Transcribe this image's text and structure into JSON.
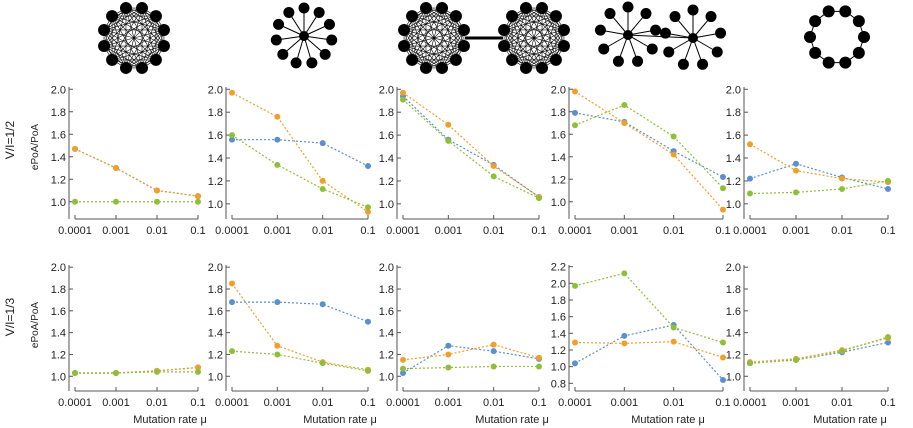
{
  "row_labels": [
    "V/I=1/2",
    "V/I=1/3"
  ],
  "ylabel": "ePoA/PoA",
  "xlabel": "Mutation rate μ",
  "series_colors": {
    "blue": "#5b8fcf",
    "orange": "#f0a02a",
    "green": "#8fbf3a"
  },
  "network_icons": [
    "complete-graph",
    "star-graph",
    "two-connected-complete-graphs",
    "two-connected-stars",
    "cycle-graph"
  ],
  "chart_data": [
    {
      "type": "line",
      "title": "",
      "row": 1,
      "col": 1,
      "categories": [
        "0.0001",
        "0.001",
        "0.01",
        "0.1"
      ],
      "yticks": [
        "1.0",
        "1.2",
        "1.4",
        "1.6",
        "1.8",
        "2.0"
      ],
      "ylim": [
        0.9,
        2.02
      ],
      "grid": false,
      "series": [
        {
          "color": "blue",
          "values": [
            1.47,
            1.3,
            1.1,
            1.05
          ]
        },
        {
          "color": "orange",
          "values": [
            1.47,
            1.3,
            1.1,
            1.05
          ]
        },
        {
          "color": "green",
          "values": [
            1.0,
            1.0,
            1.0,
            1.0
          ]
        }
      ]
    },
    {
      "type": "line",
      "title": "",
      "row": 1,
      "col": 2,
      "categories": [
        "0.0001",
        "0.001",
        "0.01",
        "0.1"
      ],
      "yticks": [
        "1.0",
        "1.2",
        "1.4",
        "1.6",
        "1.8",
        "2.0"
      ],
      "ylim": [
        0.92,
        2.02
      ],
      "grid": false,
      "series": [
        {
          "color": "blue",
          "values": [
            1.56,
            1.56,
            1.53,
            1.33
          ]
        },
        {
          "color": "orange",
          "values": [
            1.97,
            1.76,
            1.2,
            0.93
          ]
        },
        {
          "color": "green",
          "values": [
            1.6,
            1.34,
            1.13,
            0.97
          ]
        }
      ]
    },
    {
      "type": "line",
      "title": "",
      "row": 1,
      "col": 3,
      "categories": [
        "0.0001",
        "0.001",
        "0.01",
        "0.1"
      ],
      "yticks": [
        "1.0",
        "1.2",
        "1.4",
        "1.6",
        "1.8",
        "2.0"
      ],
      "ylim": [
        0.92,
        2.02
      ],
      "grid": false,
      "series": [
        {
          "color": "blue",
          "values": [
            1.94,
            1.56,
            1.34,
            1.06
          ]
        },
        {
          "color": "orange",
          "values": [
            1.97,
            1.69,
            1.33,
            1.06
          ]
        },
        {
          "color": "green",
          "values": [
            1.91,
            1.55,
            1.24,
            1.05
          ]
        }
      ]
    },
    {
      "type": "line",
      "title": "",
      "row": 1,
      "col": 4,
      "categories": [
        "0.0001",
        "0.001",
        "0.01",
        "0.1"
      ],
      "yticks": [
        "1.0",
        "1.2",
        "1.4",
        "1.6",
        "1.8",
        "2.0"
      ],
      "ylim": [
        0.9,
        2.02
      ],
      "grid": false,
      "series": [
        {
          "color": "blue",
          "values": [
            1.79,
            1.71,
            1.45,
            1.22
          ]
        },
        {
          "color": "orange",
          "values": [
            1.98,
            1.7,
            1.42,
            0.93
          ]
        },
        {
          "color": "green",
          "values": [
            1.68,
            1.86,
            1.58,
            1.12
          ]
        }
      ]
    },
    {
      "type": "line",
      "title": "",
      "row": 1,
      "col": 5,
      "categories": [
        "0.0001",
        "0.001",
        "0.01",
        "0.1"
      ],
      "yticks": [
        "1.0",
        "1.2",
        "1.4",
        "1.6",
        "1.8",
        "2.0"
      ],
      "ylim": [
        0.92,
        2.02
      ],
      "grid": false,
      "series": [
        {
          "color": "blue",
          "values": [
            1.22,
            1.35,
            1.23,
            1.13
          ]
        },
        {
          "color": "orange",
          "values": [
            1.52,
            1.29,
            1.22,
            1.19
          ]
        },
        {
          "color": "green",
          "values": [
            1.09,
            1.1,
            1.13,
            1.2
          ]
        }
      ]
    },
    {
      "type": "line",
      "title": "",
      "row": 2,
      "col": 1,
      "categories": [
        "0.0001",
        "0.001",
        "0.01",
        "0.1"
      ],
      "yticks": [
        "1.0",
        "1.2",
        "1.4",
        "1.6",
        "1.8",
        "2.0"
      ],
      "ylim": [
        0.92,
        2.02
      ],
      "grid": false,
      "series": [
        {
          "color": "blue",
          "values": [
            1.03,
            1.03,
            1.05,
            1.08
          ]
        },
        {
          "color": "orange",
          "values": [
            1.03,
            1.03,
            1.05,
            1.08
          ]
        },
        {
          "color": "green",
          "values": [
            1.03,
            1.03,
            1.04,
            1.04
          ]
        }
      ]
    },
    {
      "type": "line",
      "title": "",
      "row": 2,
      "col": 2,
      "categories": [
        "0.0001",
        "0.001",
        "0.01",
        "0.1"
      ],
      "yticks": [
        "1.0",
        "1.2",
        "1.4",
        "1.6",
        "1.8",
        "2.0"
      ],
      "ylim": [
        0.92,
        2.02
      ],
      "grid": false,
      "series": [
        {
          "color": "blue",
          "values": [
            1.68,
            1.68,
            1.66,
            1.5
          ]
        },
        {
          "color": "orange",
          "values": [
            1.85,
            1.28,
            1.13,
            1.06
          ]
        },
        {
          "color": "green",
          "values": [
            1.23,
            1.2,
            1.12,
            1.05
          ]
        }
      ]
    },
    {
      "type": "line",
      "title": "",
      "row": 2,
      "col": 3,
      "categories": [
        "0.0001",
        "0.001",
        "0.01",
        "0.1"
      ],
      "yticks": [
        "1.0",
        "1.2",
        "1.4",
        "1.6",
        "1.8",
        "2.0"
      ],
      "ylim": [
        0.92,
        2.02
      ],
      "grid": false,
      "series": [
        {
          "color": "blue",
          "values": [
            1.03,
            1.28,
            1.23,
            1.16
          ]
        },
        {
          "color": "orange",
          "values": [
            1.15,
            1.2,
            1.29,
            1.17
          ]
        },
        {
          "color": "green",
          "values": [
            1.07,
            1.08,
            1.09,
            1.09
          ]
        }
      ]
    },
    {
      "type": "line",
      "title": "",
      "row": 2,
      "col": 4,
      "categories": [
        "0.0001",
        "0.001",
        "0.01",
        "0.1"
      ],
      "yticks": [
        "0.8",
        "1.0",
        "1.2",
        "1.4",
        "1.6",
        "1.8",
        "2.0",
        "2.2"
      ],
      "ylim": [
        0.78,
        2.22
      ],
      "grid": false,
      "series": [
        {
          "color": "blue",
          "values": [
            1.04,
            1.37,
            1.5,
            0.84
          ]
        },
        {
          "color": "orange",
          "values": [
            1.29,
            1.28,
            1.3,
            1.11
          ]
        },
        {
          "color": "green",
          "values": [
            1.97,
            2.12,
            1.47,
            1.29
          ]
        }
      ]
    },
    {
      "type": "line",
      "title": "",
      "row": 2,
      "col": 5,
      "categories": [
        "0.0001",
        "0.001",
        "0.01",
        "0.1"
      ],
      "yticks": [
        "1.0",
        "1.2",
        "1.4",
        "1.6",
        "1.8",
        "2.0"
      ],
      "ylim": [
        0.92,
        2.02
      ],
      "grid": false,
      "series": [
        {
          "color": "blue",
          "values": [
            1.12,
            1.15,
            1.22,
            1.31
          ]
        },
        {
          "color": "orange",
          "values": [
            1.13,
            1.16,
            1.24,
            1.35
          ]
        },
        {
          "color": "green",
          "values": [
            1.12,
            1.15,
            1.23,
            1.36
          ]
        }
      ]
    }
  ]
}
